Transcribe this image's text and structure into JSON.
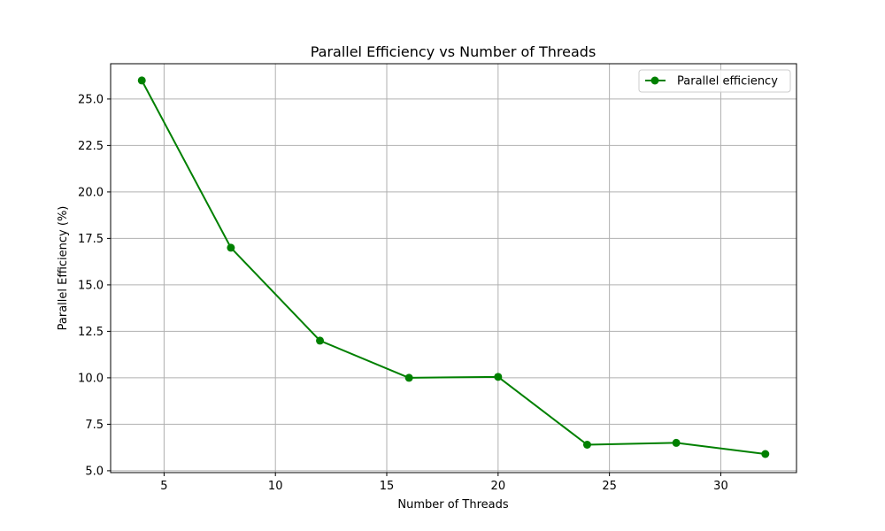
{
  "chart_data": {
    "type": "line",
    "title": "Parallel Efficiency vs Number of Threads",
    "xlabel": "Number of Threads",
    "ylabel": "Parallel Efficiency (%)",
    "xlim": [
      2.6,
      33.4
    ],
    "ylim": [
      4.9,
      26.9
    ],
    "x_ticks": [
      5,
      10,
      15,
      20,
      25,
      30
    ],
    "x_tick_labels": [
      "5",
      "10",
      "15",
      "20",
      "25",
      "30"
    ],
    "y_ticks": [
      5.0,
      7.5,
      10.0,
      12.5,
      15.0,
      17.5,
      20.0,
      22.5,
      25.0
    ],
    "y_tick_labels": [
      "5.0",
      "7.5",
      "10.0",
      "12.5",
      "15.0",
      "17.5",
      "20.0",
      "22.5",
      "25.0"
    ],
    "grid": true,
    "legend_position": "top-right",
    "series": [
      {
        "name": "Parallel efficiency",
        "color": "#008000",
        "marker": "circle",
        "x": [
          4,
          8,
          12,
          16,
          20,
          24,
          28,
          32
        ],
        "y": [
          26.0,
          17.0,
          12.0,
          10.0,
          10.05,
          6.4,
          6.5,
          5.9
        ]
      }
    ]
  }
}
